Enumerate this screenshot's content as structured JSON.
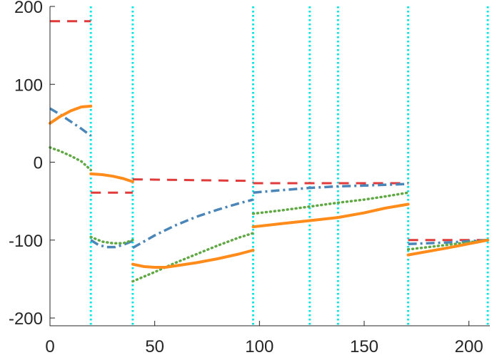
{
  "chart_data": {
    "type": "line",
    "title": "",
    "xlabel": "",
    "ylabel": "",
    "xlim": [
      0,
      210
    ],
    "ylim": [
      -210,
      200
    ],
    "x_ticks": [
      0,
      50,
      100,
      150,
      200
    ],
    "y_ticks": [
      200,
      100,
      0,
      -100,
      -200
    ],
    "x_tick_labels": [
      "0",
      "50",
      "100",
      "150",
      "200"
    ],
    "y_tick_labels": [
      "200",
      "100",
      "0",
      "-100",
      "-200"
    ],
    "grid": false,
    "legend": "none",
    "vertical_lines": {
      "color": "#00e5e5",
      "style": "dotted",
      "x": [
        19.5,
        39.5,
        97,
        124,
        137.5,
        171,
        209
      ]
    },
    "series": [
      {
        "color": "#e03a3a",
        "style": "dashed",
        "segments": [
          [
            [
              0,
              181
            ],
            [
              19.5,
              181
            ]
          ],
          [
            [
              19.5,
              -39
            ],
            [
              39.5,
              -39
            ]
          ],
          [
            [
              39.5,
              -22
            ],
            [
              97,
              -24
            ]
          ],
          [
            [
              97,
              -27
            ],
            [
              171,
              -27
            ]
          ],
          [
            [
              171,
              -100
            ],
            [
              209,
              -100
            ]
          ]
        ]
      },
      {
        "color": "#4a86b8",
        "style": "dashdot",
        "segments": [
          [
            [
              0,
              69
            ],
            [
              5,
              61
            ],
            [
              10,
              52
            ],
            [
              15,
              43
            ],
            [
              19.5,
              34
            ]
          ],
          [
            [
              19.5,
              -100
            ],
            [
              23,
              -106
            ],
            [
              27,
              -109
            ],
            [
              31,
              -109
            ],
            [
              35,
              -106
            ],
            [
              39.5,
              -101
            ]
          ],
          [
            [
              39.5,
              -110
            ],
            [
              50,
              -94
            ],
            [
              60,
              -81
            ],
            [
              70,
              -70
            ],
            [
              80,
              -61
            ],
            [
              90,
              -53
            ],
            [
              97,
              -48
            ]
          ],
          [
            [
              97,
              -39
            ],
            [
              110,
              -36
            ],
            [
              124,
              -33
            ],
            [
              137.5,
              -31
            ],
            [
              150,
              -30
            ],
            [
              160,
              -29
            ],
            [
              171,
              -28
            ]
          ],
          [
            [
              171,
              -105
            ],
            [
              190,
              -103
            ],
            [
              209,
              -100
            ]
          ]
        ]
      },
      {
        "color": "#5fa843",
        "style": "dotted",
        "segments": [
          [
            [
              0,
              19
            ],
            [
              5,
              14
            ],
            [
              10,
              8
            ],
            [
              15,
              1
            ],
            [
              19.5,
              -10
            ]
          ],
          [
            [
              19.5,
              -96
            ],
            [
              25,
              -102
            ],
            [
              30,
              -104
            ],
            [
              35,
              -104
            ],
            [
              39.5,
              -100
            ]
          ],
          [
            [
              39.5,
              -153
            ],
            [
              50,
              -141
            ],
            [
              60,
              -129
            ],
            [
              70,
              -118
            ],
            [
              80,
              -107
            ],
            [
              90,
              -97
            ],
            [
              97,
              -91
            ]
          ],
          [
            [
              97,
              -66
            ],
            [
              110,
              -62
            ],
            [
              124,
              -57
            ],
            [
              137.5,
              -52
            ],
            [
              150,
              -48
            ],
            [
              160,
              -44
            ],
            [
              171,
              -39
            ]
          ],
          [
            [
              171,
              -112
            ],
            [
              190,
              -106
            ],
            [
              209,
              -100
            ]
          ]
        ]
      },
      {
        "color": "#ff8c1a",
        "style": "solid",
        "segments": [
          [
            [
              0,
              50
            ],
            [
              5,
              59
            ],
            [
              10,
              66
            ],
            [
              15,
              71
            ],
            [
              19.5,
              72
            ]
          ],
          [
            [
              19.5,
              -15
            ],
            [
              25,
              -16
            ],
            [
              30,
              -18
            ],
            [
              35,
              -21
            ],
            [
              39.5,
              -25
            ]
          ],
          [
            [
              39.5,
              -131
            ],
            [
              45,
              -134
            ],
            [
              50,
              -135
            ],
            [
              55,
              -135
            ],
            [
              60,
              -133
            ],
            [
              70,
              -129
            ],
            [
              80,
              -124
            ],
            [
              90,
              -118
            ],
            [
              97,
              -113
            ]
          ],
          [
            [
              97,
              -83
            ],
            [
              110,
              -79
            ],
            [
              124,
              -75
            ],
            [
              137.5,
              -71
            ],
            [
              150,
              -65
            ],
            [
              160,
              -59
            ],
            [
              171,
              -54
            ]
          ],
          [
            [
              171,
              -119
            ],
            [
              190,
              -110
            ],
            [
              209,
              -100
            ]
          ]
        ]
      }
    ]
  }
}
